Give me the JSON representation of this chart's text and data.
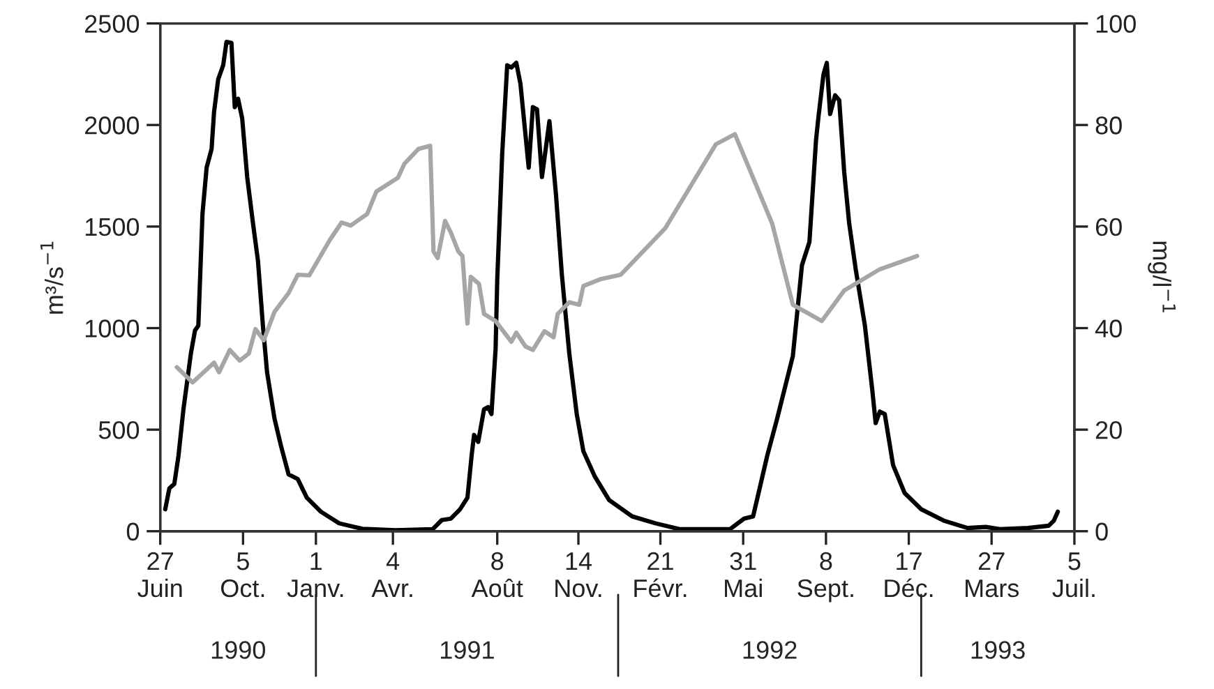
{
  "chart_data": {
    "type": "line",
    "ylabel": "m³/s$^{−1}$",
    "y2label": "mg/l$^{−1}$",
    "xlim": [
      "1990-06-27",
      "1993-07-05"
    ],
    "xticks": [
      {
        "value": "1990-06-27",
        "label": "27\nJuin"
      },
      {
        "value": "1990-10-05",
        "label": "5\nOct."
      },
      {
        "value": "1991-01-01",
        "label": "1\nJanv."
      },
      {
        "value": "1991-04-04",
        "label": "4\nAvr."
      },
      {
        "value": "1991-08-08",
        "label": "8\nAoût"
      },
      {
        "value": "1991-11-14",
        "label": "14\nNov."
      },
      {
        "value": "1992-02-21",
        "label": "21\nFévr."
      },
      {
        "value": "1992-05-31",
        "label": "31\nMai"
      },
      {
        "value": "1992-09-08",
        "label": "8\nSept."
      },
      {
        "value": "1992-12-17",
        "label": "17\nDéc."
      },
      {
        "value": "1993-03-27",
        "label": "27\nMars"
      },
      {
        "value": "1993-07-05",
        "label": "5\nJuil."
      }
    ],
    "ylim": [
      0,
      2500
    ],
    "yticks": [
      0,
      500,
      1000,
      1500,
      2000,
      2500
    ],
    "y2lim": [
      0,
      100
    ],
    "y2ticks": [
      0,
      20,
      40,
      60,
      80,
      100
    ],
    "grid": false,
    "marker": "none",
    "line_style": "solid",
    "annotations": [
      "1990",
      "1991",
      "1992",
      "1993"
    ],
    "series": [
      {
        "color": "#000000",
        "x": [
          "1990-07-03",
          "1990-07-08",
          "1990-07-14",
          "1990-07-19",
          "1990-07-25",
          "1990-08-03",
          "1990-08-08",
          "1990-08-12",
          "1990-08-17",
          "1990-08-22",
          "1990-08-28",
          "1990-08-31",
          "1990-09-05",
          "1990-09-11",
          "1990-09-15",
          "1990-09-21",
          "1990-09-25",
          "1990-09-29",
          "1990-10-04",
          "1990-10-10",
          "1990-10-17",
          "1990-10-23",
          "1990-10-29",
          "1990-11-03",
          "1990-11-12",
          "1990-11-20",
          "1990-11-29",
          "1990-12-10",
          "1990-12-21",
          "1991-01-07",
          "1991-01-29",
          "1991-02-26",
          "1991-04-07",
          "1991-05-22",
          "1991-06-02",
          "1991-06-13",
          "1991-06-24",
          "1991-07-03",
          "1991-07-08",
          "1991-07-11",
          "1991-07-16",
          "1991-07-23",
          "1991-07-28",
          "1991-08-01",
          "1991-08-06",
          "1991-08-08",
          "1991-08-14",
          "1991-08-20",
          "1991-08-25",
          "1991-08-31",
          "1991-09-05",
          "1991-09-15",
          "1991-09-20",
          "1991-09-25",
          "1991-10-01",
          "1991-10-10",
          "1991-10-18",
          "1991-10-25",
          "1991-11-03",
          "1991-11-12",
          "1991-11-20",
          "1991-12-04",
          "1991-12-21",
          "1992-01-18",
          "1992-02-15",
          "1992-03-15",
          "1992-05-15",
          "1992-06-01",
          "1992-06-12",
          "1992-06-29",
          "1992-07-11",
          "1992-07-30",
          "1992-08-10",
          "1992-08-19",
          "1992-08-27",
          "1992-08-30",
          "1992-09-05",
          "1992-09-09",
          "1992-09-13",
          "1992-09-19",
          "1992-09-24",
          "1992-09-30",
          "1992-10-06",
          "1992-10-14",
          "1992-10-25",
          "1992-11-03",
          "1992-11-07",
          "1992-11-12",
          "1992-11-18",
          "1992-11-28",
          "1992-12-12",
          "1993-01-01",
          "1993-01-29",
          "1993-02-26",
          "1993-03-20",
          "1993-04-06",
          "1993-05-10",
          "1993-06-04",
          "1993-06-10",
          "1993-06-15"
        ],
        "values": [
          108,
          211,
          233,
          371,
          600,
          875,
          989,
          1012,
          1562,
          1790,
          1882,
          2065,
          2225,
          2294,
          2409,
          2404,
          2088,
          2129,
          2031,
          1744,
          1516,
          1332,
          1012,
          783,
          554,
          417,
          280,
          257,
          165,
          96,
          39,
          12,
          5,
          10,
          55,
          62,
          108,
          165,
          371,
          474,
          440,
          600,
          611,
          577,
          898,
          1241,
          1860,
          2294,
          2283,
          2306,
          2203,
          1790,
          2088,
          2077,
          1744,
          2019,
          1653,
          1264,
          875,
          577,
          394,
          268,
          154,
          73,
          39,
          10,
          10,
          62,
          73,
          371,
          554,
          863,
          1310,
          1424,
          1927,
          2043,
          2249,
          2306,
          2054,
          2146,
          2122,
          1768,
          1516,
          1287,
          1012,
          692,
          532,
          589,
          577,
          326,
          188,
          108,
          51,
          16,
          21,
          10,
          16,
          27,
          51,
          96
        ]
      },
      {
        "color": "#a6a6a6",
        "axis": "y2",
        "x": [
          "1990-07-17",
          "1990-08-05",
          "1990-08-31",
          "1990-09-06",
          "1990-09-19",
          "1990-10-01",
          "1990-10-12",
          "1990-10-20",
          "1990-10-30",
          "1990-11-12",
          "1990-11-29",
          "1990-12-10",
          "1990-12-24",
          "1991-01-18",
          "1991-02-01",
          "1991-02-12",
          "1991-03-04",
          "1991-03-15",
          "1991-04-10",
          "1991-04-18",
          "1991-05-05",
          "1991-05-19",
          "1991-05-23",
          "1991-05-28",
          "1991-06-06",
          "1991-06-13",
          "1991-06-22",
          "1991-06-27",
          "1991-07-03",
          "1991-07-07",
          "1991-07-17",
          "1991-07-23",
          "1991-08-06",
          "1991-08-25",
          "1991-08-31",
          "1991-09-11",
          "1991-09-20",
          "1991-10-04",
          "1991-10-15",
          "1991-10-20",
          "1991-11-03",
          "1991-11-15",
          "1991-11-20",
          "1991-12-10",
          "1992-01-04",
          "1992-02-27",
          "1992-04-28",
          "1992-05-21",
          "1992-07-05",
          "1992-07-30",
          "1992-09-03",
          "1992-09-30",
          "1992-11-11",
          "1992-12-27"
        ],
        "values": [
          32.3,
          29.3,
          33.2,
          31.3,
          35.7,
          33.6,
          35.0,
          39.8,
          37.6,
          43.2,
          46.9,
          50.5,
          50.4,
          57.4,
          60.8,
          60.2,
          62.5,
          66.9,
          69.6,
          72.4,
          75.3,
          75.9,
          55.1,
          53.8,
          61.1,
          58.8,
          55.1,
          54.2,
          40.9,
          50.1,
          48.7,
          42.8,
          41.4,
          37.3,
          39.1,
          36.4,
          35.7,
          39.4,
          38.2,
          42.8,
          45.1,
          44.6,
          48.3,
          49.6,
          50.5,
          59.7,
          76.2,
          78.2,
          60.6,
          44.6,
          41.4,
          47.4,
          51.5,
          54.2
        ]
      }
    ]
  }
}
